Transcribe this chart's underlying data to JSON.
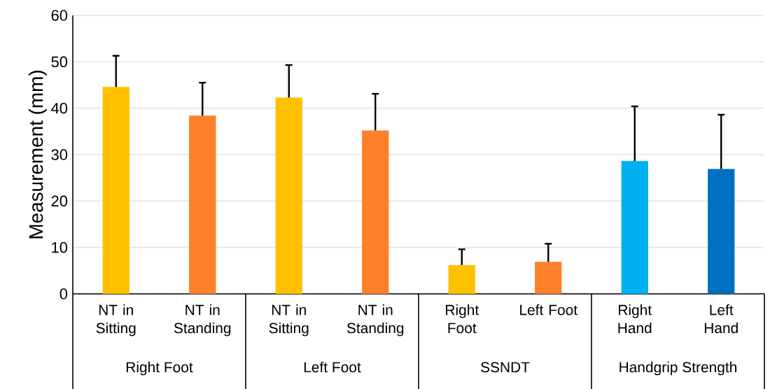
{
  "chart_data": {
    "type": "bar",
    "ylabel": "Measurement (mm)",
    "categories": [
      "NT in Sitting",
      "NT in Standing",
      "NT in Sitting",
      "NT in Standing",
      "Right Foot",
      "Left Foot",
      "Right Hand",
      "Left Hand"
    ],
    "values": [
      44.6,
      38.4,
      42.3,
      35.2,
      6.2,
      6.9,
      28.6,
      26.9
    ],
    "errors": [
      6.7,
      7.1,
      7.0,
      7.9,
      3.4,
      3.9,
      11.8,
      11.7
    ],
    "colors": [
      "#ffc000",
      "#ff7f2a",
      "#ffc000",
      "#ff7f2a",
      "#ffc000",
      "#ff7f2a",
      "#00b0f0",
      "#0070c0"
    ],
    "annotations": [
      "Right Foot",
      "Left Foot",
      "SSNDT",
      "Handgrip Strength"
    ],
    "ylim": [
      0,
      60
    ],
    "yticks": [
      0,
      10,
      20,
      30,
      40,
      50,
      60
    ],
    "grid": "y"
  }
}
